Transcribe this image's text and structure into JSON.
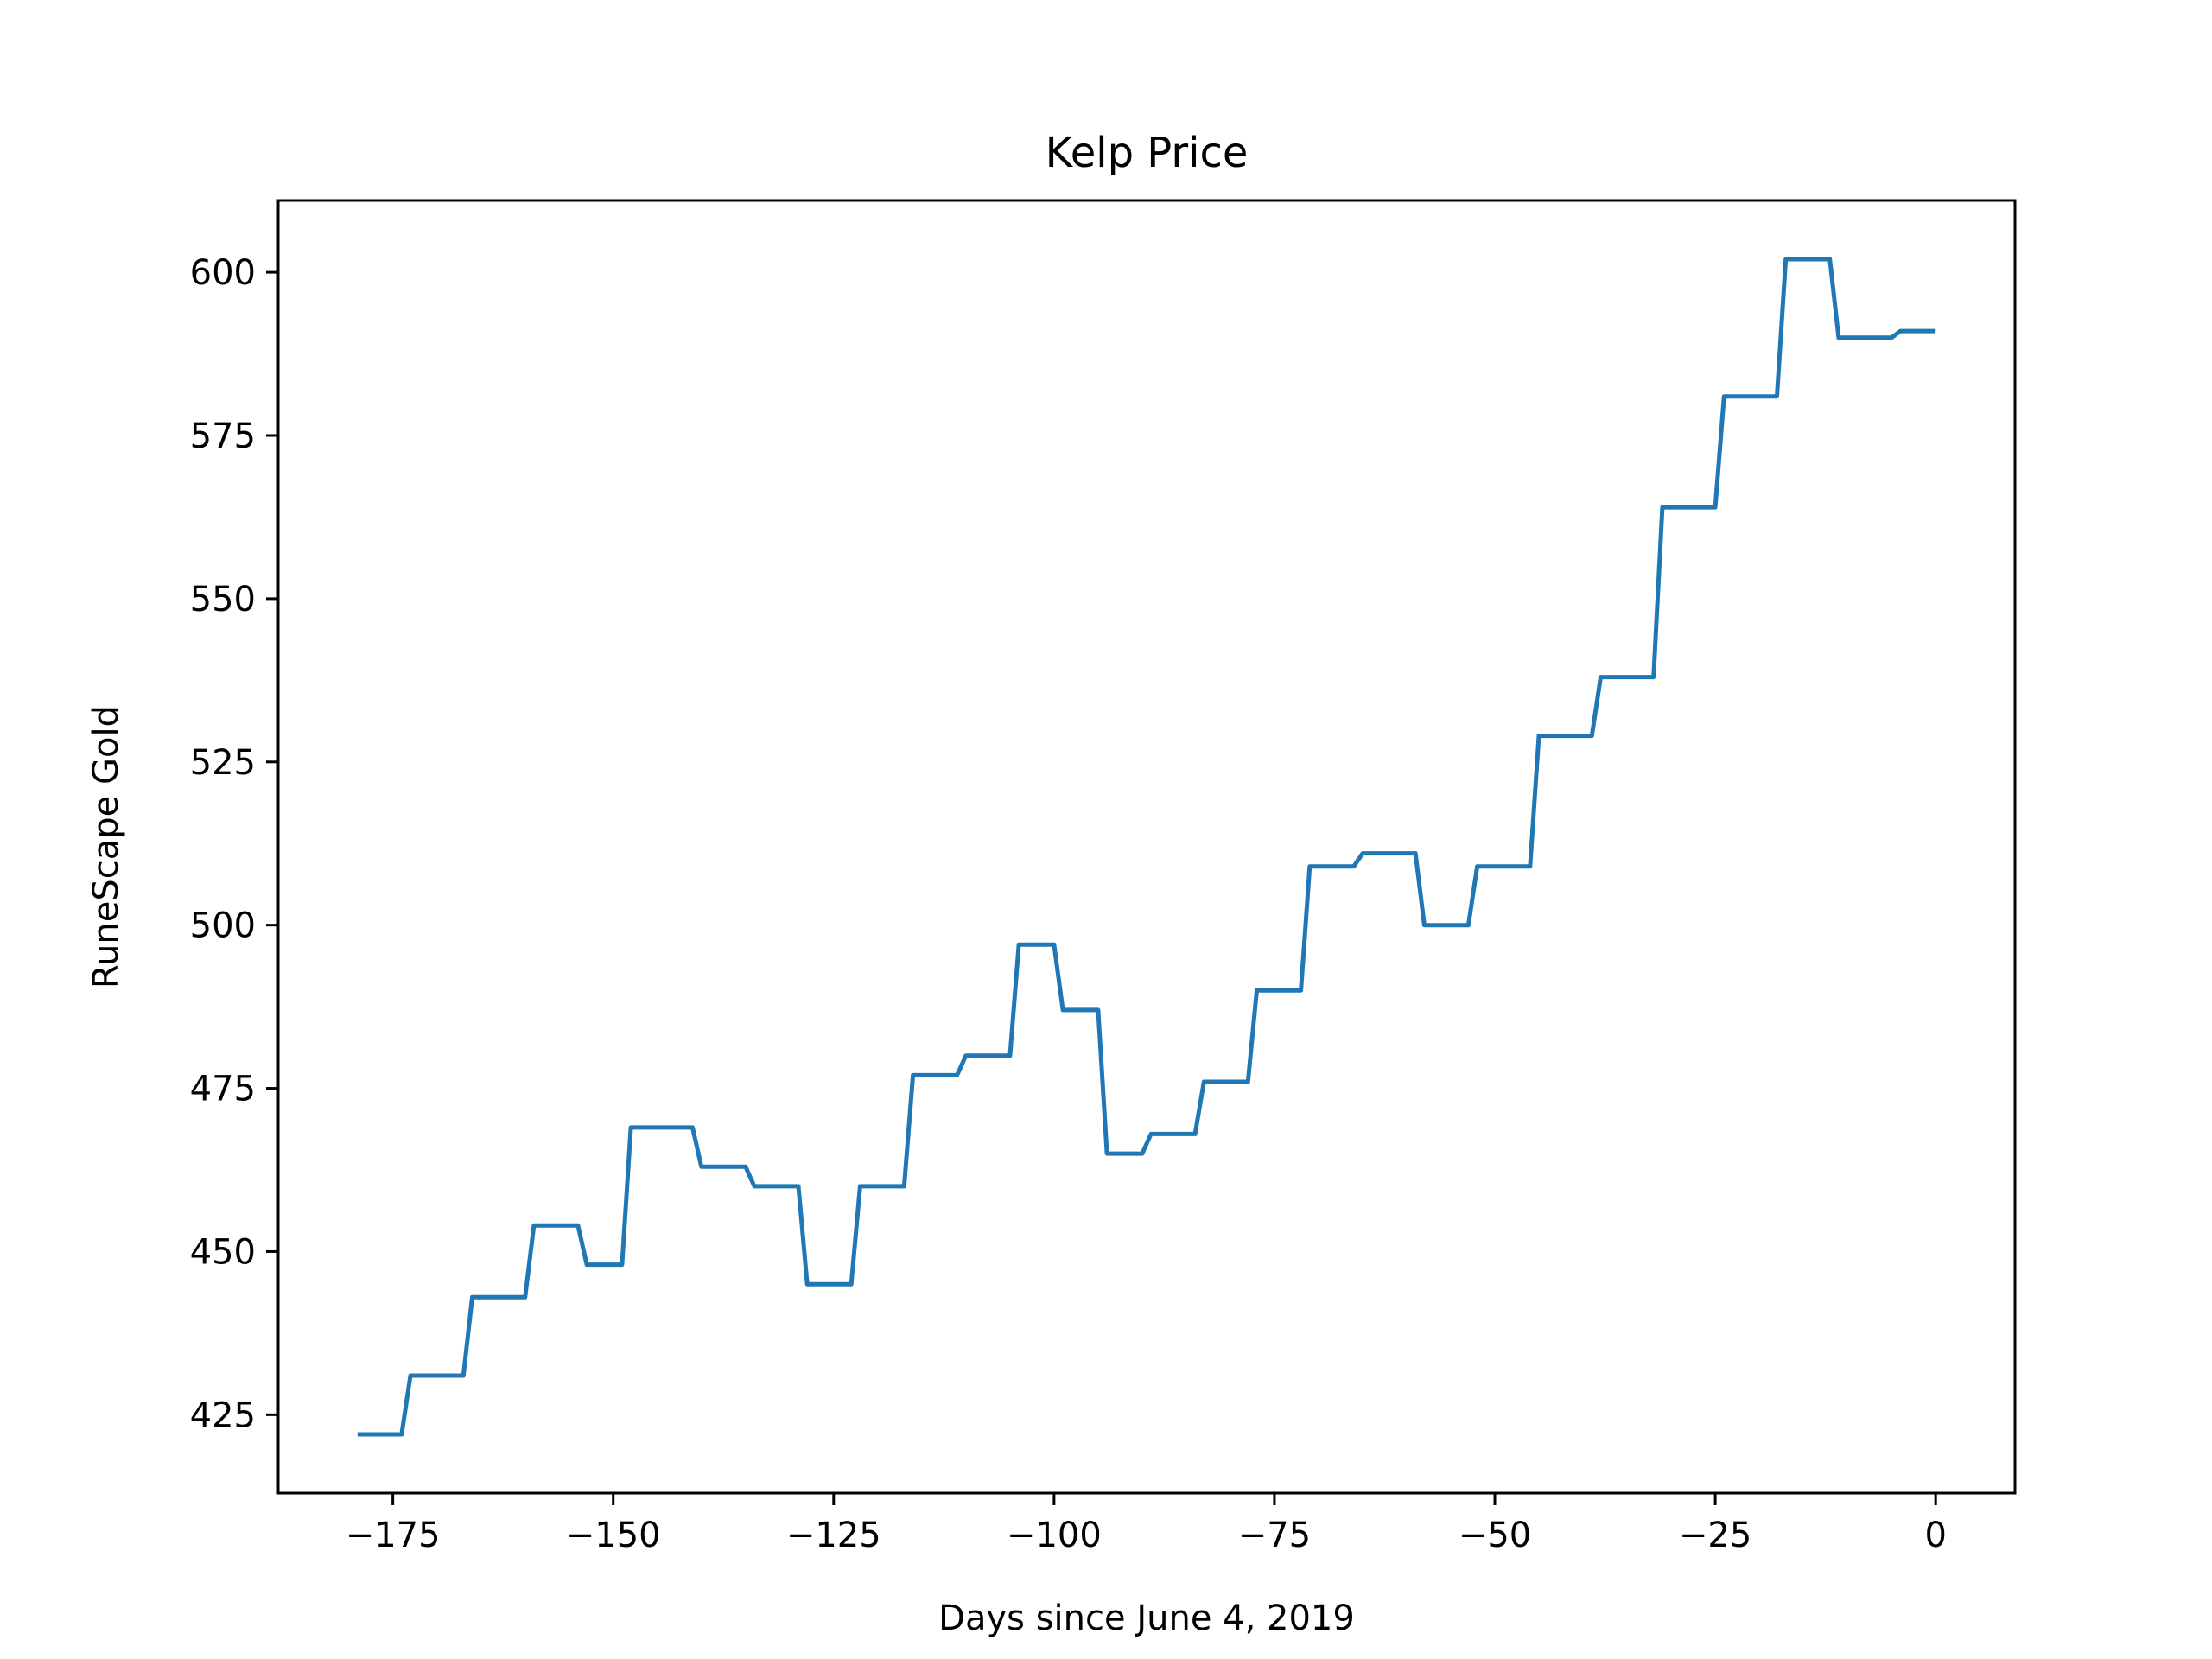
{
  "chart_data": {
    "type": "line",
    "title": "Kelp Price",
    "xlabel": "Days since June 4, 2019",
    "ylabel": "RuneScape Gold",
    "xlim": [
      -188,
      9
    ],
    "ylim": [
      413,
      611
    ],
    "xticks": [
      -175,
      -150,
      -125,
      -100,
      -75,
      -50,
      -25,
      0
    ],
    "xtick_labels": [
      "−175",
      "−150",
      "−125",
      "−100",
      "−75",
      "−50",
      "−25",
      "0"
    ],
    "yticks": [
      425,
      450,
      475,
      500,
      525,
      550,
      575,
      600
    ],
    "ytick_labels": [
      "425",
      "450",
      "475",
      "500",
      "525",
      "550",
      "575",
      "600"
    ],
    "grid": false,
    "legend": "none",
    "series": [
      {
        "color": "#1f77b4",
        "x": [
          -179,
          -174,
          -173,
          -167,
          -166,
          -160,
          -159,
          -154,
          -153,
          -149,
          -148,
          -141,
          -140,
          -135,
          -134,
          -129,
          -128,
          -123,
          -122,
          -117,
          -116,
          -111,
          -110,
          -105,
          -104,
          -100,
          -99,
          -95,
          -94,
          -90,
          -89,
          -84,
          -83,
          -78,
          -77,
          -72,
          -71,
          -66,
          -65,
          -59,
          -58,
          -53,
          -52,
          -46,
          -45,
          -39,
          -38,
          -32,
          -31,
          -25,
          -24,
          -18,
          -17,
          -12,
          -11,
          -5,
          -4,
          0
        ],
        "y": [
          422,
          422,
          431,
          431,
          443,
          443,
          454,
          454,
          448,
          448,
          469,
          469,
          463,
          463,
          460,
          460,
          445,
          445,
          460,
          460,
          477,
          477,
          480,
          480,
          497,
          497,
          487,
          487,
          465,
          465,
          468,
          468,
          476,
          476,
          490,
          490,
          509,
          509,
          511,
          511,
          500,
          500,
          509,
          509,
          529,
          529,
          538,
          538,
          564,
          564,
          581,
          581,
          602,
          602,
          590,
          590,
          591,
          591
        ]
      }
    ]
  }
}
